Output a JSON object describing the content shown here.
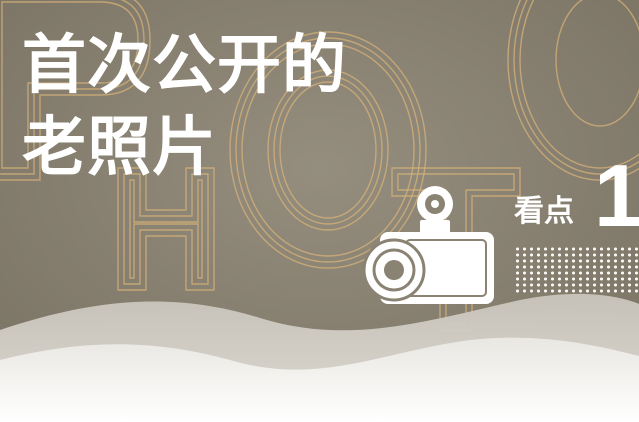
{
  "headline": {
    "line1": "首次公开的",
    "line2": "老照片"
  },
  "highlight": {
    "label": "看点",
    "number": "1"
  },
  "colors": {
    "background": "#8a8373",
    "accent_outline": "#d7b27a",
    "text": "#ffffff"
  },
  "icons": {
    "camera": "camera-icon"
  }
}
